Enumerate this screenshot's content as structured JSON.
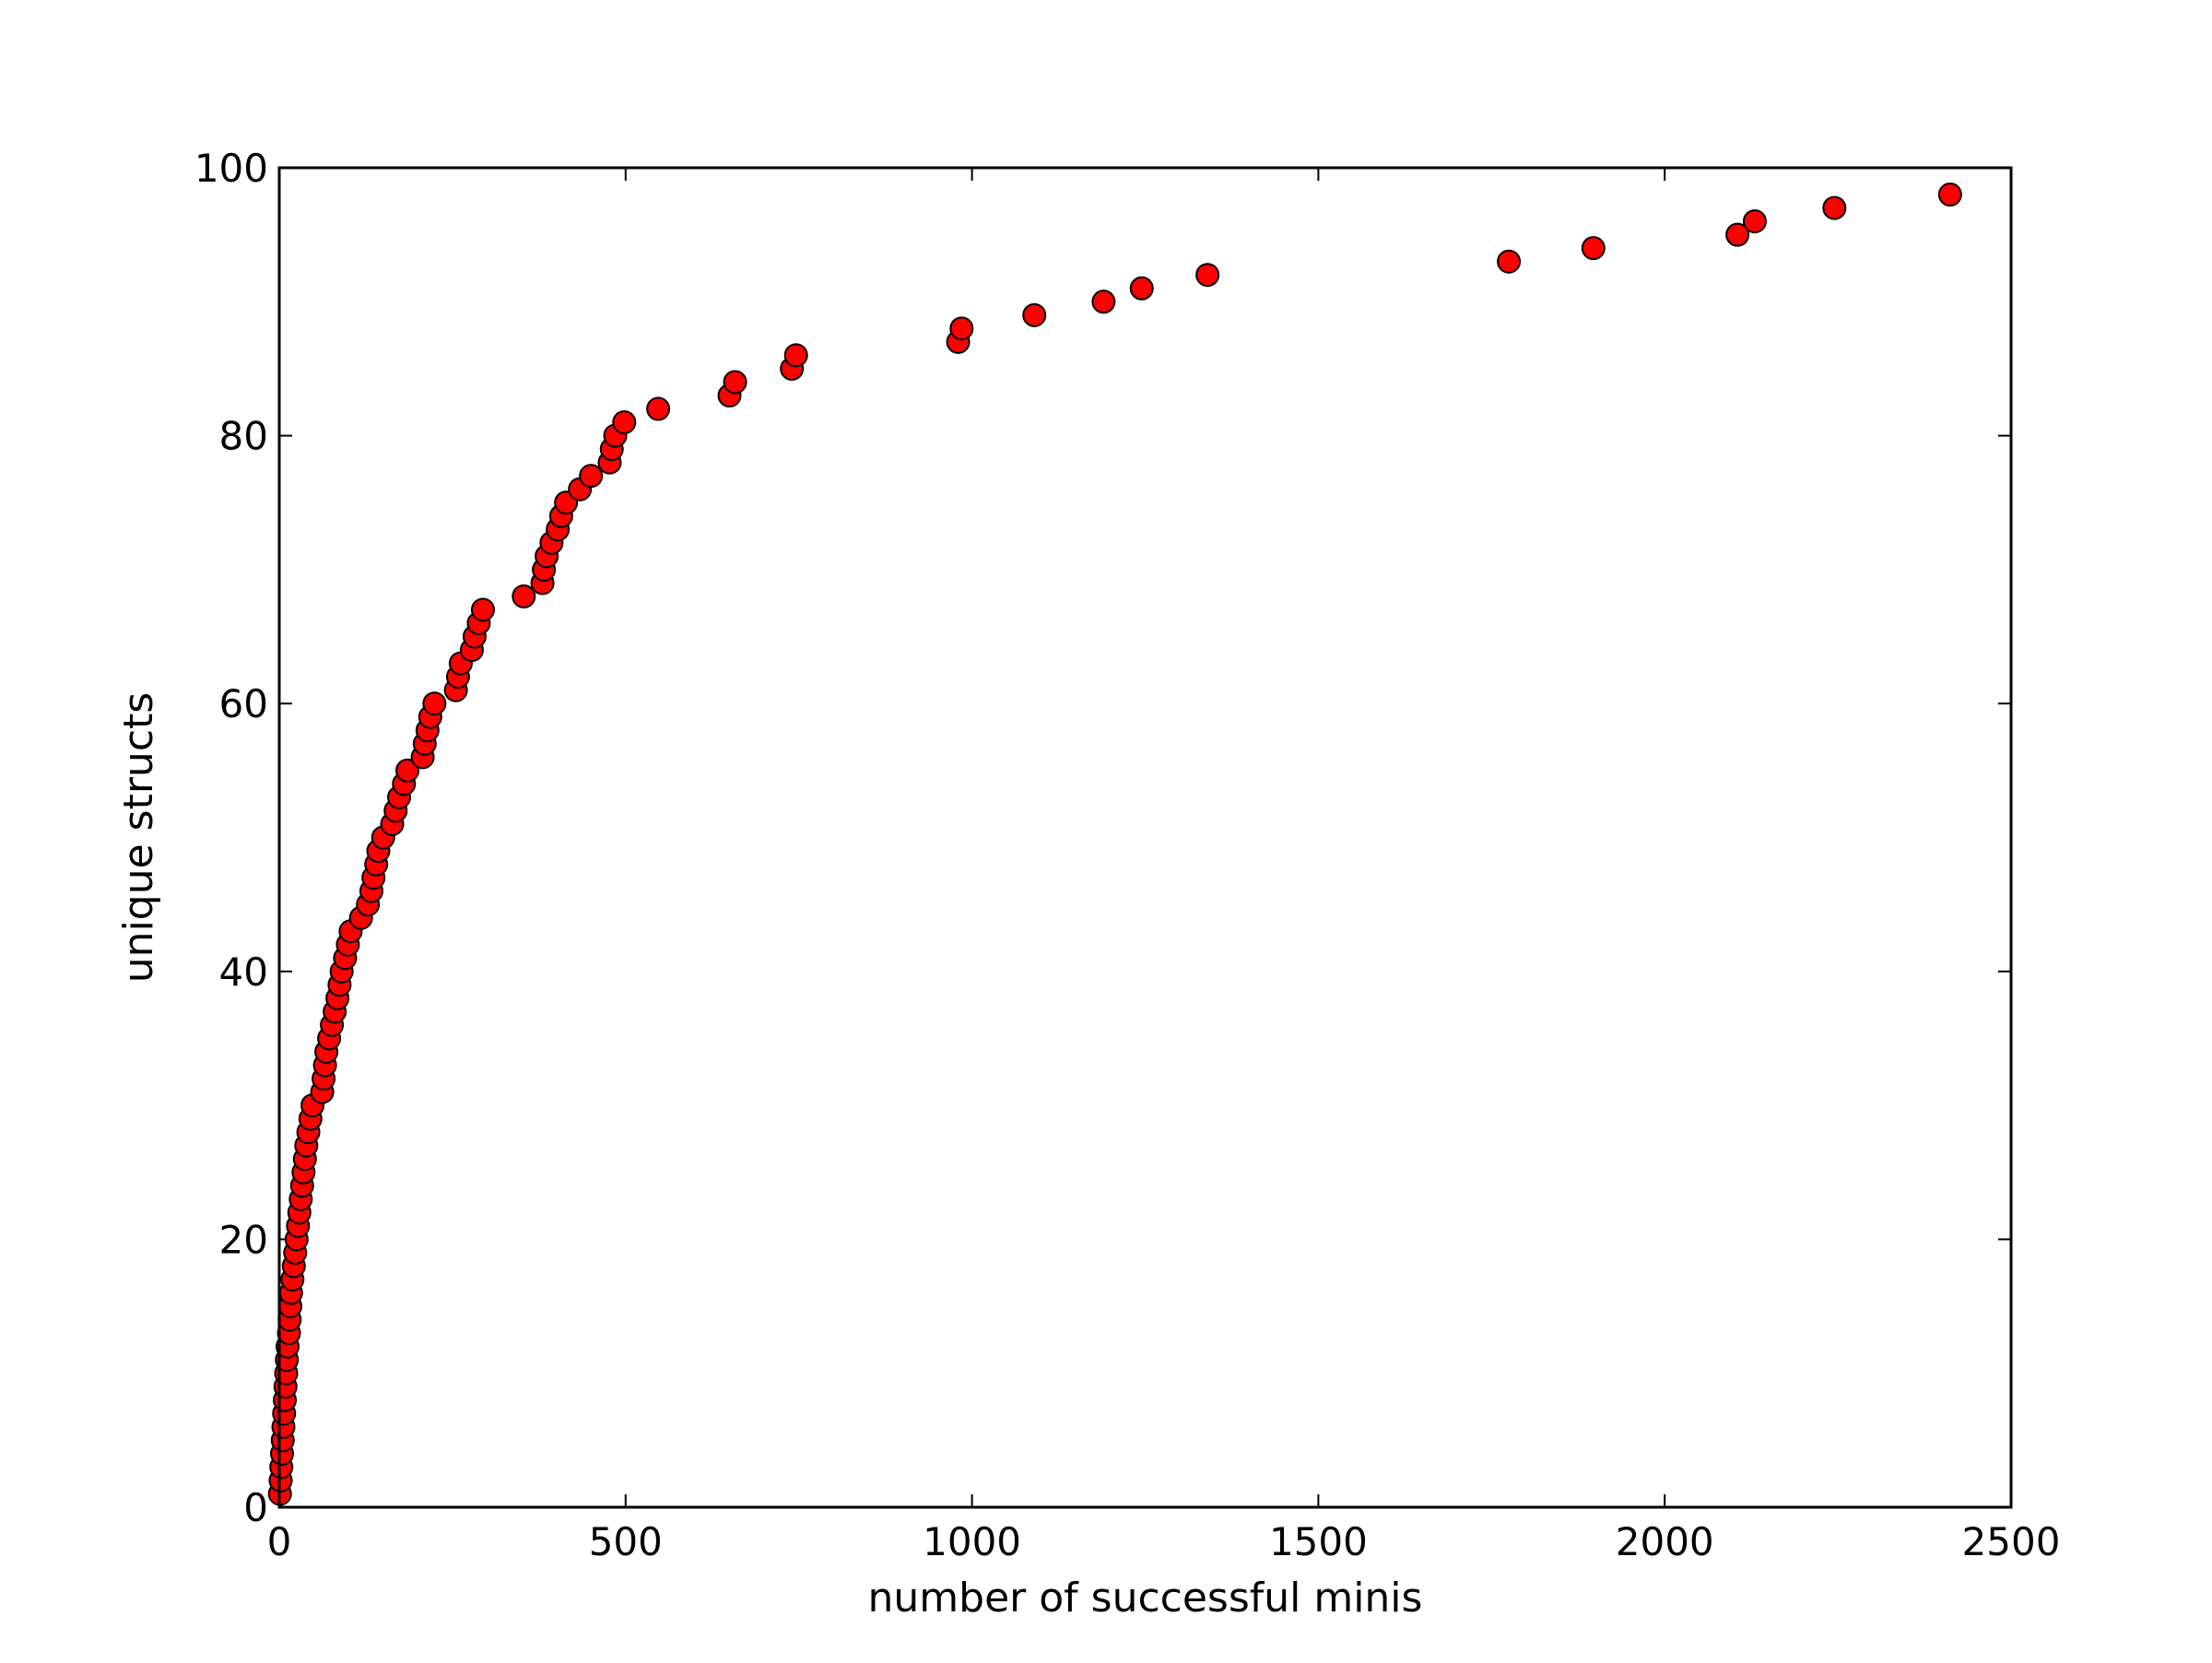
{
  "chart_data": {
    "type": "scatter",
    "title": "",
    "xlabel": "number of successful minis",
    "ylabel": "unique structs",
    "xlim": [
      0,
      2500
    ],
    "ylim": [
      0,
      100
    ],
    "xticks": [
      0,
      500,
      1000,
      1500,
      2000,
      2500
    ],
    "yticks": [
      0,
      20,
      40,
      60,
      80,
      100
    ],
    "grid": false,
    "marker": "circle",
    "marker_color": "#ff0000",
    "marker_edge_color": "#000000",
    "series": [
      {
        "points": [
          [
            1,
            1
          ],
          [
            2,
            2
          ],
          [
            3,
            3
          ],
          [
            4,
            4
          ],
          [
            5,
            5
          ],
          [
            6,
            6
          ],
          [
            7,
            7
          ],
          [
            8,
            8
          ],
          [
            9,
            9
          ],
          [
            10,
            10
          ],
          [
            11,
            11
          ],
          [
            12,
            12
          ],
          [
            14,
            13
          ],
          [
            15,
            14
          ],
          [
            16,
            15
          ],
          [
            17,
            16
          ],
          [
            19,
            17
          ],
          [
            21,
            18
          ],
          [
            23,
            19
          ],
          [
            25,
            20
          ],
          [
            27,
            21
          ],
          [
            29,
            22
          ],
          [
            31,
            23
          ],
          [
            33,
            24
          ],
          [
            35,
            25
          ],
          [
            37,
            26
          ],
          [
            39,
            27
          ],
          [
            42,
            28
          ],
          [
            45,
            29
          ],
          [
            48,
            30
          ],
          [
            62,
            31
          ],
          [
            64,
            32
          ],
          [
            66,
            33
          ],
          [
            68,
            34
          ],
          [
            72,
            35
          ],
          [
            76,
            36
          ],
          [
            80,
            37
          ],
          [
            84,
            38
          ],
          [
            87,
            39
          ],
          [
            90,
            40
          ],
          [
            95,
            41
          ],
          [
            99,
            42
          ],
          [
            103,
            43
          ],
          [
            118,
            44
          ],
          [
            128,
            45
          ],
          [
            133,
            46
          ],
          [
            136,
            47
          ],
          [
            140,
            48
          ],
          [
            143,
            49
          ],
          [
            150,
            50
          ],
          [
            163,
            51
          ],
          [
            168,
            52
          ],
          [
            173,
            53
          ],
          [
            180,
            54
          ],
          [
            185,
            55
          ],
          [
            207,
            56
          ],
          [
            210,
            57
          ],
          [
            214,
            58
          ],
          [
            218,
            59
          ],
          [
            224,
            60
          ],
          [
            255,
            61
          ],
          [
            258,
            62
          ],
          [
            262,
            63
          ],
          [
            278,
            64
          ],
          [
            282,
            65
          ],
          [
            288,
            66
          ],
          [
            294,
            67
          ],
          [
            353,
            68
          ],
          [
            380,
            69
          ],
          [
            382,
            70
          ],
          [
            386,
            71
          ],
          [
            393,
            72
          ],
          [
            402,
            73
          ],
          [
            407,
            74
          ],
          [
            414,
            75
          ],
          [
            434,
            76
          ],
          [
            450,
            77
          ],
          [
            477,
            78
          ],
          [
            480,
            79
          ],
          [
            485,
            80
          ],
          [
            498,
            81
          ],
          [
            547,
            82
          ],
          [
            650,
            83
          ],
          [
            658,
            84
          ],
          [
            740,
            85
          ],
          [
            746,
            86
          ],
          [
            980,
            87
          ],
          [
            985,
            88
          ],
          [
            1090,
            89
          ],
          [
            1190,
            90
          ],
          [
            1245,
            91
          ],
          [
            1340,
            92
          ],
          [
            1775,
            93
          ],
          [
            1897,
            94
          ],
          [
            2105,
            95
          ],
          [
            2130,
            96
          ],
          [
            2245,
            97
          ],
          [
            2412,
            98
          ]
        ]
      }
    ]
  }
}
